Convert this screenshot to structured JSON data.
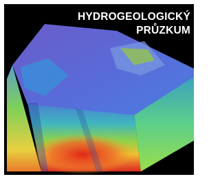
{
  "title": {
    "line1": "HYDROGEOLOGICKÝ",
    "line2": "PRŮZKUM"
  }
}
